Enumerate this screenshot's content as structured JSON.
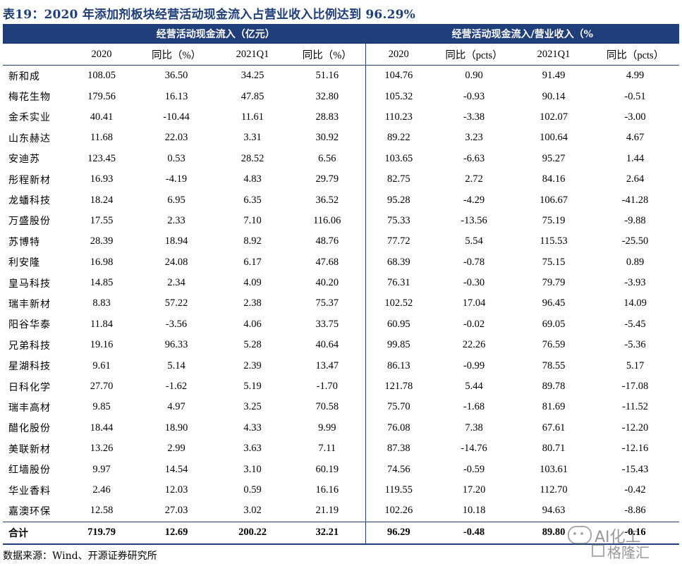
{
  "title": "表19：2020 年添加剂板块经营活动现金流入占营业收入比例达到 96.29%",
  "header": {
    "group1": "经营活动现金流入（亿元）",
    "group2": "经营活动现金流入/营业收入（%",
    "columns": [
      "2020",
      "同比（%）",
      "2021Q1",
      "同比（%）",
      "2020",
      "同比（pcts）",
      "2021Q1",
      "同比（pcts）"
    ]
  },
  "rows": [
    {
      "name": "新和成",
      "v": [
        "108.05",
        "36.50",
        "34.25",
        "51.16",
        "104.76",
        "0.90",
        "91.49",
        "4.99"
      ]
    },
    {
      "name": "梅花生物",
      "v": [
        "179.56",
        "16.13",
        "47.85",
        "32.80",
        "105.32",
        "-0.93",
        "90.14",
        "-0.51"
      ]
    },
    {
      "name": "金禾实业",
      "v": [
        "40.41",
        "-10.44",
        "11.61",
        "28.83",
        "110.23",
        "-3.38",
        "102.07",
        "-3.00"
      ]
    },
    {
      "name": "山东赫达",
      "v": [
        "11.68",
        "22.03",
        "3.31",
        "30.92",
        "89.22",
        "3.23",
        "100.64",
        "4.67"
      ]
    },
    {
      "name": "安迪苏",
      "v": [
        "123.45",
        "0.53",
        "28.52",
        "6.56",
        "103.65",
        "-6.63",
        "95.27",
        "1.44"
      ]
    },
    {
      "name": "彤程新材",
      "v": [
        "16.93",
        "-4.19",
        "4.83",
        "29.79",
        "82.75",
        "2.72",
        "84.16",
        "2.64"
      ]
    },
    {
      "name": "龙蟠科技",
      "v": [
        "18.24",
        "6.95",
        "6.35",
        "36.52",
        "95.28",
        "-4.29",
        "106.67",
        "-41.28"
      ]
    },
    {
      "name": "万盛股份",
      "v": [
        "17.55",
        "2.33",
        "7.10",
        "116.06",
        "75.33",
        "-13.56",
        "75.19",
        "-9.88"
      ]
    },
    {
      "name": "苏博特",
      "v": [
        "28.39",
        "18.94",
        "8.92",
        "48.76",
        "77.72",
        "5.54",
        "115.53",
        "-25.50"
      ]
    },
    {
      "name": "利安隆",
      "v": [
        "16.98",
        "24.08",
        "6.17",
        "47.68",
        "68.39",
        "-0.78",
        "75.15",
        "0.89"
      ]
    },
    {
      "name": "皇马科技",
      "v": [
        "14.85",
        "2.34",
        "4.09",
        "40.20",
        "76.31",
        "-0.30",
        "79.79",
        "-3.93"
      ]
    },
    {
      "name": "瑞丰新材",
      "v": [
        "8.83",
        "57.22",
        "2.38",
        "75.37",
        "102.52",
        "17.04",
        "96.45",
        "14.09"
      ]
    },
    {
      "name": "阳谷华泰",
      "v": [
        "11.84",
        "-3.56",
        "4.06",
        "33.75",
        "60.95",
        "-0.02",
        "69.05",
        "-5.45"
      ]
    },
    {
      "name": "兄弟科技",
      "v": [
        "19.16",
        "96.33",
        "5.28",
        "40.64",
        "99.85",
        "22.26",
        "76.59",
        "-5.36"
      ]
    },
    {
      "name": "星湖科技",
      "v": [
        "9.61",
        "5.14",
        "2.39",
        "13.47",
        "86.13",
        "-0.99",
        "78.55",
        "5.17"
      ]
    },
    {
      "name": "日科化学",
      "v": [
        "27.70",
        "-1.62",
        "5.19",
        "-1.70",
        "121.78",
        "5.44",
        "89.78",
        "-17.08"
      ]
    },
    {
      "name": "瑞丰高材",
      "v": [
        "9.85",
        "4.97",
        "3.25",
        "70.58",
        "75.70",
        "-1.68",
        "81.69",
        "-11.52"
      ]
    },
    {
      "name": "醋化股份",
      "v": [
        "18.44",
        "18.90",
        "4.33",
        "9.99",
        "76.08",
        "7.38",
        "67.61",
        "-12.20"
      ]
    },
    {
      "name": "美联新材",
      "v": [
        "13.26",
        "2.99",
        "3.63",
        "7.11",
        "87.38",
        "-14.76",
        "80.71",
        "-12.16"
      ]
    },
    {
      "name": "红墙股份",
      "v": [
        "9.97",
        "14.54",
        "3.10",
        "60.19",
        "74.56",
        "-0.59",
        "103.61",
        "-15.43"
      ]
    },
    {
      "name": "华业香料",
      "v": [
        "2.46",
        "12.03",
        "0.59",
        "16.16",
        "119.55",
        "17.20",
        "112.70",
        "-0.42"
      ]
    },
    {
      "name": "嘉澳环保",
      "v": [
        "12.58",
        "27.03",
        "3.02",
        "21.19",
        "102.26",
        "10.18",
        "94.63",
        "-8.86"
      ]
    }
  ],
  "total": {
    "name": "合计",
    "v": [
      "719.79",
      "12.69",
      "200.22",
      "32.21",
      "96.29",
      "-0.48",
      "89.80",
      "-0.16"
    ]
  },
  "source": "数据来源：Wind、开源证券研究所",
  "watermark": {
    "line1": "AI化工",
    "line2": "格隆汇"
  }
}
